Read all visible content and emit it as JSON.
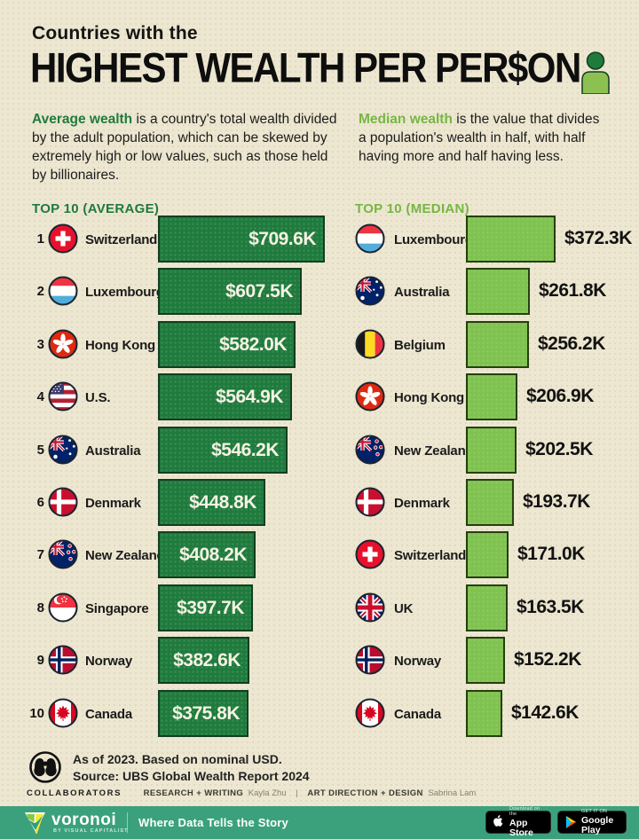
{
  "title": {
    "kicker": "Countries with the",
    "main": "HIGHEST WEALTH PER PER$ON"
  },
  "definitions": {
    "average": {
      "lead": "Average wealth",
      "rest": " is a country's total wealth divided by the adult population, which can be skewed by extremely high or low values, such as those held by billionaires."
    },
    "median": {
      "lead": "Median wealth",
      "rest": " is the value that divides a population's wealth in half, with half having more and half having less."
    }
  },
  "chart_data": [
    {
      "type": "bar",
      "title": "TOP 10 (AVERAGE)",
      "unit": "USD thousands per adult",
      "orientation": "horizontal",
      "bar_color": "#1F7B3D",
      "value_label_position": "inside-right",
      "categories": [
        "Switzerland",
        "Luxembourg",
        "Hong Kong",
        "U.S.",
        "Australia",
        "Denmark",
        "New Zealand",
        "Singapore",
        "Norway",
        "Canada"
      ],
      "values": [
        709.6,
        607.5,
        582.0,
        564.9,
        546.2,
        448.8,
        408.2,
        397.7,
        382.6,
        375.8
      ],
      "rows": [
        {
          "rank": "1",
          "country": "Switzerland",
          "flag": "switzerland",
          "value": 709.6,
          "label": "$709.6K"
        },
        {
          "rank": "2",
          "country": "Luxembourg",
          "flag": "luxembourg",
          "value": 607.5,
          "label": "$607.5K"
        },
        {
          "rank": "3",
          "country": "Hong Kong",
          "flag": "hongkong",
          "value": 582.0,
          "label": "$582.0K"
        },
        {
          "rank": "4",
          "country": "U.S.",
          "flag": "us",
          "value": 564.9,
          "label": "$564.9K"
        },
        {
          "rank": "5",
          "country": "Australia",
          "flag": "australia",
          "value": 546.2,
          "label": "$546.2K"
        },
        {
          "rank": "6",
          "country": "Denmark",
          "flag": "denmark",
          "value": 448.8,
          "label": "$448.8K"
        },
        {
          "rank": "7",
          "country": "New Zealand",
          "flag": "newzealand",
          "value": 408.2,
          "label": "$408.2K"
        },
        {
          "rank": "8",
          "country": "Singapore",
          "flag": "singapore",
          "value": 397.7,
          "label": "$397.7K"
        },
        {
          "rank": "9",
          "country": "Norway",
          "flag": "norway",
          "value": 382.6,
          "label": "$382.6K"
        },
        {
          "rank": "10",
          "country": "Canada",
          "flag": "canada",
          "value": 375.8,
          "label": "$375.8K"
        }
      ]
    },
    {
      "type": "bar",
      "title": "TOP 10 (MEDIAN)",
      "unit": "USD thousands per adult",
      "orientation": "horizontal",
      "bar_color": "#7FC24F",
      "value_label_position": "outside-right",
      "categories": [
        "Luxembourg",
        "Australia",
        "Belgium",
        "Hong Kong",
        "New Zealand",
        "Denmark",
        "Switzerland",
        "UK",
        "Norway",
        "Canada"
      ],
      "values": [
        372.3,
        261.8,
        256.2,
        206.9,
        202.5,
        193.7,
        171.0,
        163.5,
        152.2,
        142.6
      ],
      "rows": [
        {
          "country": "Luxembourg",
          "flag": "luxembourg",
          "value": 372.3,
          "label": "$372.3K"
        },
        {
          "country": "Australia",
          "flag": "australia",
          "value": 261.8,
          "label": "$261.8K"
        },
        {
          "country": "Belgium",
          "flag": "belgium",
          "value": 256.2,
          "label": "$256.2K"
        },
        {
          "country": "Hong Kong",
          "flag": "hongkong",
          "value": 206.9,
          "label": "$206.9K"
        },
        {
          "country": "New Zealand",
          "flag": "newzealand",
          "value": 202.5,
          "label": "$202.5K"
        },
        {
          "country": "Denmark",
          "flag": "denmark",
          "value": 193.7,
          "label": "$193.7K"
        },
        {
          "country": "Switzerland",
          "flag": "switzerland",
          "value": 171.0,
          "label": "$171.0K"
        },
        {
          "country": "UK",
          "flag": "uk",
          "value": 163.5,
          "label": "$163.5K"
        },
        {
          "country": "Norway",
          "flag": "norway",
          "value": 152.2,
          "label": "$152.2K"
        },
        {
          "country": "Canada",
          "flag": "canada",
          "value": 142.6,
          "label": "$142.6K"
        }
      ]
    }
  ],
  "footnote": {
    "line1": "As of 2023. Based on nominal USD.",
    "line2": "Source: UBS Global Wealth Report 2024"
  },
  "collaborators": {
    "title": "COLLABORATORS",
    "role1": "RESEARCH + WRITING",
    "name1": "Kayla Zhu",
    "separator": "|",
    "role2": "ART DIRECTION + DESIGN",
    "name2": "Sabrina Lam"
  },
  "footer": {
    "brand": "voronoi",
    "brand_sub": "BY VISUAL CAPITALIST",
    "tagline": "Where Data Tells the Story",
    "appstore_top": "Download on the",
    "appstore_bottom": "App Store",
    "gplay_top": "GET IT ON",
    "gplay_bottom": "Google Play"
  },
  "colors": {
    "background": "#EDE7D1",
    "average_green": "#1F7B3D",
    "median_green": "#7FC24F",
    "footer_teal": "#3BA17D",
    "text_dark": "#161616"
  }
}
